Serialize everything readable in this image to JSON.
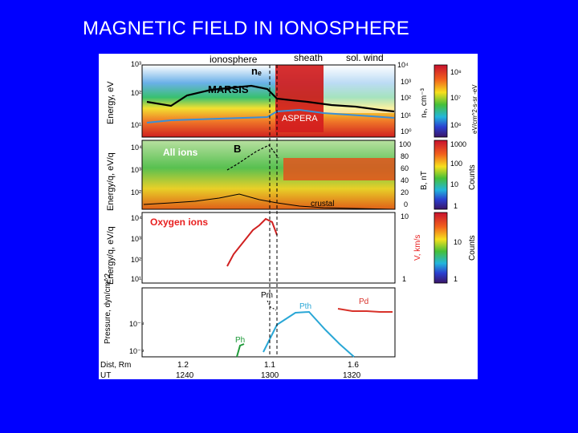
{
  "slide": {
    "title": "MAGNETIC FIELD IN IONOSPHERE"
  },
  "figure": {
    "regions": [
      "ionosphere",
      "sheath",
      "sol. wind"
    ],
    "panel1": {
      "ylabel": "Energy, eV",
      "yticks": [
        "10³",
        "10²",
        "10¹"
      ],
      "labels": {
        "ne": "nₑ",
        "marsis": "MARSIS",
        "aspera": "ASPERA"
      },
      "right_ylabel": "nₑ, cm⁻³",
      "right_ticks": [
        "10⁴",
        "10³",
        "10²",
        "10¹",
        "10⁰"
      ],
      "cbar_ticks": [
        "10⁸",
        "10⁷",
        "10⁶"
      ],
      "cbar_label": "eV/cm^2-s-sr -eV"
    },
    "panel2": {
      "ylabel": "Energy/q, eV/q",
      "yticks": [
        "10⁴",
        "10³",
        "10²"
      ],
      "labels": {
        "ions": "All ions",
        "b": "B",
        "crustal": "crustal"
      },
      "right_ylabel": "B, nT",
      "right_ticks": [
        "100",
        "80",
        "60",
        "40",
        "20",
        "0"
      ],
      "cbar_ticks": [
        "1000",
        "100",
        "10",
        "1"
      ],
      "cbar_label": "Counts"
    },
    "panel3": {
      "ylabel": "Energy/q, eV/q",
      "yticks": [
        "10⁴",
        "10³",
        "10²",
        "10¹"
      ],
      "labels": {
        "ions": "Oxygen ions"
      },
      "right_ylabel": "V, km/s",
      "right_ticks": [
        "10",
        "1"
      ],
      "cbar_ticks": [
        "10",
        "1"
      ],
      "cbar_label": "Counts"
    },
    "panel4": {
      "ylabel": "Pressure, dyn/cm^2",
      "yticks": [
        "10⁻⁸",
        "10⁻⁹"
      ],
      "labels": {
        "pm": "Pm",
        "pth": "Pth",
        "pd": "Pd",
        "ph": "Ph"
      }
    },
    "xaxis": {
      "dist_label": "Dist, Rm",
      "dist_ticks": [
        "1.2",
        "1.1",
        "1.6"
      ],
      "ut_label": "UT",
      "ut_ticks": [
        "1240",
        "1300",
        "1320"
      ]
    },
    "colors": {
      "page_bg": "#0000ff",
      "pth_line": "#2aa7d6",
      "pd_line": "#d8322a",
      "oxygen_label": "#e82020",
      "velocity_label": "#e82020",
      "ph_line": "#1f9a3a"
    }
  }
}
